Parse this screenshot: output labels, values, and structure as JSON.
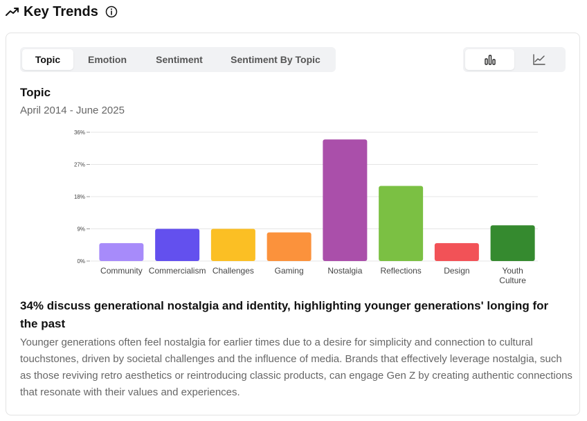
{
  "header": {
    "title": "Key Trends",
    "trend_icon": "trending-up-icon",
    "info_icon": "info-icon"
  },
  "tabs": [
    {
      "label": "Topic",
      "active": true
    },
    {
      "label": "Emotion",
      "active": false
    },
    {
      "label": "Sentiment",
      "active": false
    },
    {
      "label": "Sentiment By Topic",
      "active": false
    }
  ],
  "view_toggle": {
    "options": [
      "bar-chart-icon",
      "line-chart-icon"
    ],
    "active": "bar-chart-icon"
  },
  "chart_header": {
    "title": "Topic",
    "subtitle": "April 2014 - June 2025"
  },
  "chart_data": {
    "type": "bar",
    "categories": [
      "Community",
      "Commercialism",
      "Challenges",
      "Gaming",
      "Nostalgia",
      "Reflections",
      "Design",
      "Youth Culture"
    ],
    "values": [
      5,
      9,
      9,
      8,
      34,
      21,
      5,
      10
    ],
    "colors": [
      "#a78bfa",
      "#6350ee",
      "#fbbf24",
      "#fb923c",
      "#aa4faa",
      "#7bc043",
      "#f25257",
      "#358a2f"
    ],
    "y_ticks": [
      "0%",
      "9%",
      "18%",
      "27%",
      "36%"
    ],
    "ylim": [
      0,
      36
    ],
    "grid": true
  },
  "insight": {
    "heading": "34% discuss generational nostalgia and identity, highlighting younger generations' longing for the past",
    "body": "Younger generations often feel nostalgia for earlier times due to a desire for simplicity and connection to cultural touchstones, driven by societal challenges and the influence of media. Brands that effectively leverage nostalgia, such as those reviving retro aesthetics or reintroducing classic products, can engage Gen Z by creating authentic connections that resonate with their values and experiences."
  }
}
